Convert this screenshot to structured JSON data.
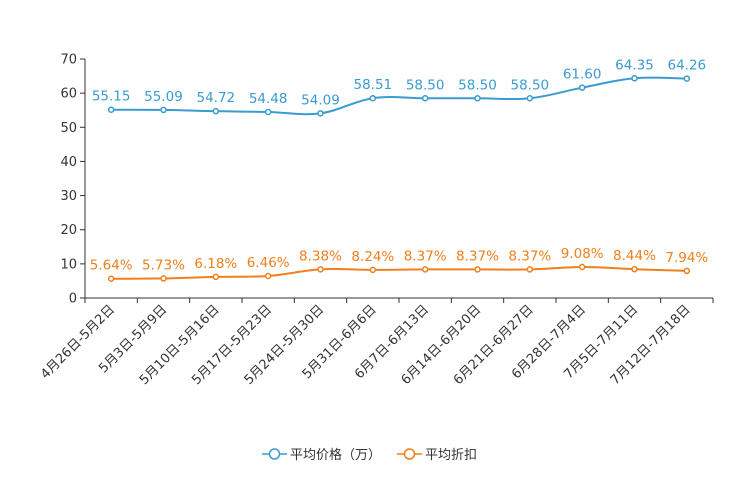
{
  "chart_data": {
    "type": "line",
    "title": "",
    "xlabel": "",
    "ylabel": "",
    "ylim": [
      0,
      70
    ],
    "yticks": [
      0,
      10,
      20,
      30,
      40,
      50,
      60,
      70
    ],
    "categories": [
      "4月26日-5月2日",
      "5月3日-5月9日",
      "5月10日-5月16日",
      "5月17日-5月23日",
      "5月24日-5月30日",
      "5月31日-6月6日",
      "6月7日-6月13日",
      "6月14日-6月20日",
      "6月21日-6月27日",
      "6月28日-7月4日",
      "7月5日-7月11日",
      "7月12日-7月18日"
    ],
    "series": [
      {
        "name": "平均价格（万）",
        "color": "#3a9bd0",
        "values": [
          55.15,
          55.09,
          54.72,
          54.48,
          54.09,
          58.51,
          58.5,
          58.5,
          58.5,
          61.6,
          64.35,
          64.26
        ],
        "labels": [
          "55.15",
          "55.09",
          "54.72",
          "54.48",
          "54.09",
          "58.51",
          "58.50",
          "58.50",
          "58.50",
          "61.60",
          "64.35",
          "64.26"
        ]
      },
      {
        "name": "平均折扣",
        "color": "#f07f1c",
        "values": [
          5.64,
          5.73,
          6.18,
          6.46,
          8.38,
          8.24,
          8.37,
          8.37,
          8.37,
          9.08,
          8.44,
          7.94
        ],
        "labels": [
          "5.64%",
          "5.73%",
          "6.18%",
          "6.46%",
          "8.38%",
          "8.24%",
          "8.37%",
          "8.37%",
          "8.37%",
          "9.08%",
          "8.44%",
          "7.94%"
        ]
      }
    ],
    "legend_position": "bottom",
    "grid": false
  }
}
